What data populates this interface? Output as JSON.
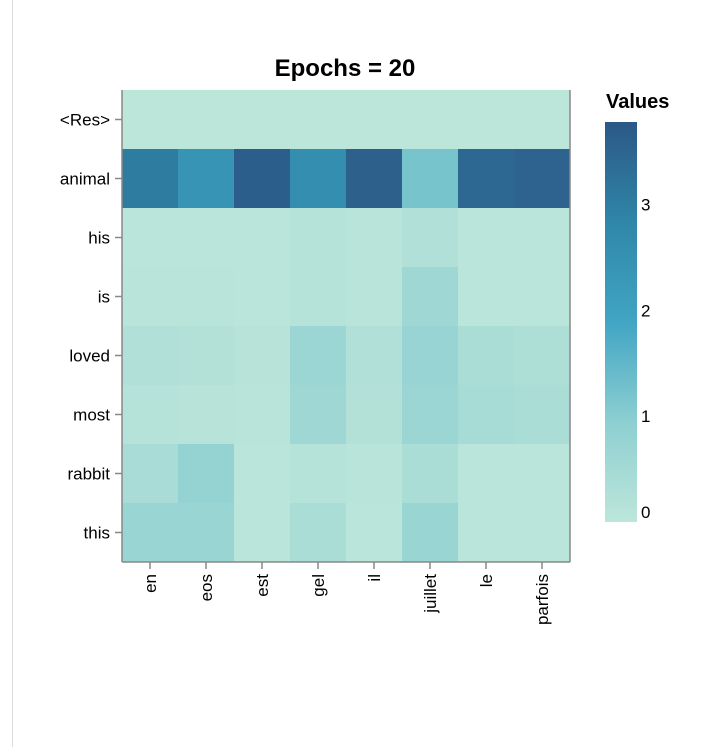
{
  "chart_data": {
    "type": "heatmap",
    "title": "Epochs = 20",
    "x_categories": [
      "en",
      "eos",
      "est",
      "gel",
      "il",
      "juillet",
      "le",
      "parfois"
    ],
    "y_categories": [
      "<Res>",
      "animal",
      "his",
      "is",
      "loved",
      "most",
      "rabbit",
      "this"
    ],
    "values": [
      [
        0.0,
        0.0,
        0.0,
        0.0,
        0.0,
        0.0,
        0.0,
        0.0
      ],
      [
        3.05,
        2.4,
        3.65,
        2.6,
        3.6,
        1.2,
        3.45,
        3.55
      ],
      [
        0.05,
        0.05,
        0.05,
        0.15,
        0.1,
        0.25,
        0.05,
        0.05
      ],
      [
        0.08,
        0.08,
        0.05,
        0.15,
        0.1,
        0.6,
        0.05,
        0.05
      ],
      [
        0.25,
        0.2,
        0.12,
        0.65,
        0.25,
        0.75,
        0.35,
        0.3
      ],
      [
        0.15,
        0.12,
        0.08,
        0.6,
        0.2,
        0.65,
        0.45,
        0.35
      ],
      [
        0.4,
        0.8,
        0.05,
        0.15,
        0.08,
        0.35,
        0.05,
        0.05
      ],
      [
        0.7,
        0.7,
        0.05,
        0.35,
        0.05,
        0.7,
        0.05,
        0.05
      ]
    ],
    "legend": {
      "title": "Values",
      "min": 0,
      "max": 3.78,
      "ticks": [
        "0",
        "1",
        "2",
        "3"
      ],
      "colors": [
        "#bde6da",
        "#8dcfd1",
        "#41a5c4",
        "#2f86a8",
        "#2c5886"
      ]
    }
  }
}
